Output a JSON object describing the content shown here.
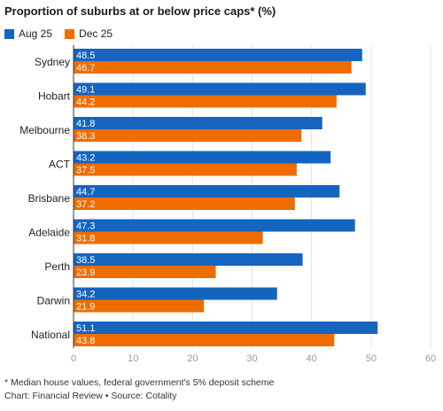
{
  "chart_data": {
    "type": "bar",
    "orientation": "horizontal",
    "title": "Proportion of suburbs at or below price caps* (%)",
    "categories": [
      "Sydney",
      "Hobart",
      "Melbourne",
      "ACT",
      "Brisbane",
      "Adelaide",
      "Perth",
      "Darwin",
      "National"
    ],
    "series": [
      {
        "name": "Aug 25",
        "color": "#1565c0",
        "values": [
          48.5,
          49.1,
          41.8,
          43.2,
          44.7,
          47.3,
          38.5,
          34.2,
          51.1
        ]
      },
      {
        "name": "Dec 25",
        "color": "#ef6c00",
        "values": [
          46.7,
          44.2,
          38.3,
          37.5,
          37.2,
          31.8,
          23.9,
          21.9,
          43.8
        ]
      }
    ],
    "xlim": [
      0,
      60
    ],
    "xticks": [
      0,
      10,
      20,
      30,
      40,
      50,
      60
    ],
    "grid": true,
    "legend": "top-left",
    "footnote": "* Median house values, federal government's 5% deposit scheme",
    "source": "Chart: Financial Review • Source: Cotality"
  }
}
